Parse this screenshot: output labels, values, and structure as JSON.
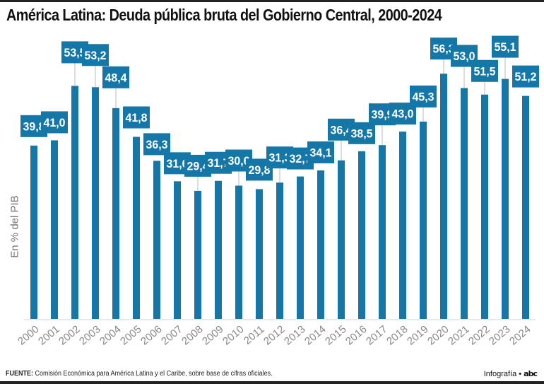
{
  "title": "América Latina: Deuda pública bruta del Gobierno Central, 2000-2024",
  "source": {
    "label": "FUENTE:",
    "text": " Comisión Económica para América Latina y el Caribe, sobre base de cifras oficiales."
  },
  "credit": {
    "text": "Infografía • ",
    "logo": "abc"
  },
  "colors": {
    "bar": "#1477a8",
    "label_box": "#1477a8",
    "leader_line": "#bbbbbb",
    "axis_line": "#dde3ea"
  },
  "chart_data": {
    "type": "bar",
    "title": "América Latina: Deuda pública bruta del Gobierno Central, 2000-2024",
    "xlabel": "",
    "ylabel": "En % del PIB",
    "ylim": [
      0,
      60
    ],
    "grid": false,
    "legend": "none",
    "categories": [
      "2000",
      "2001",
      "2002",
      "2003",
      "2004",
      "2005",
      "2006",
      "2007",
      "2008",
      "2009",
      "2010",
      "2011",
      "2012",
      "2013",
      "2014",
      "2015",
      "2016",
      "2017",
      "2018",
      "2019",
      "2020",
      "2021",
      "2022",
      "2023",
      "2024"
    ],
    "values": [
      39.8,
      41.0,
      53.5,
      53.2,
      48.4,
      41.8,
      36.3,
      31.6,
      29.4,
      31.7,
      30.6,
      29.8,
      31.3,
      32.7,
      34.1,
      36.4,
      38.5,
      39.9,
      43.0,
      45.3,
      56.3,
      53.0,
      51.5,
      55.1,
      51.2
    ],
    "value_labels": [
      "39,8",
      "41,0",
      "53,5",
      "53,2",
      "48,4",
      "41,8",
      "36,3",
      "31,6",
      "29,4",
      "31,7",
      "30,6",
      "29,8",
      "31,3",
      "32,7",
      "34,1",
      "36,4",
      "38,5",
      "39,9",
      "43,0",
      "45,3",
      "56,3",
      "53,0",
      "51,5",
      "55,1",
      "51,2"
    ]
  }
}
